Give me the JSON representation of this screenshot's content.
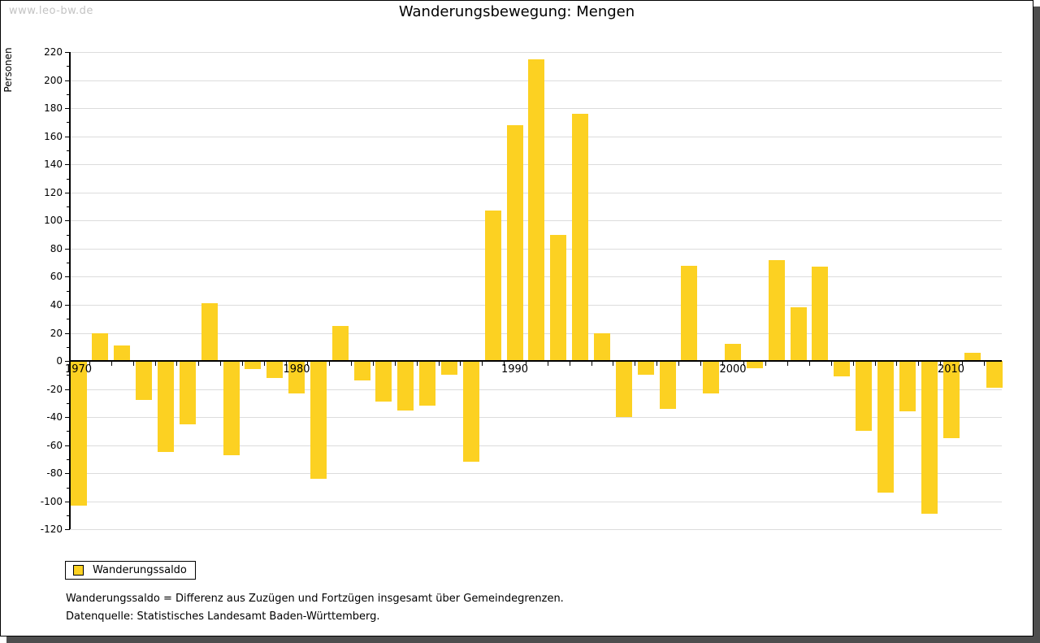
{
  "header": {
    "title": "Wanderungsbewegung: Mengen",
    "watermark": "www.leo-bw.de"
  },
  "legend": {
    "label": "Wanderungssaldo"
  },
  "footnotes": {
    "line1": "Wanderungssaldo = Differenz aus Zuzügen und Fortzügen insgesamt über Gemeindegrenzen.",
    "line2": "Datenquelle: Statistisches Landesamt Baden-Württemberg."
  },
  "chart_data": {
    "type": "bar",
    "title": "Wanderungsbewegung: Mengen",
    "xlabel": "",
    "ylabel": "Personen",
    "legend_entries": [
      "Wanderungssaldo"
    ],
    "legend_position": "bottom-left",
    "grid": true,
    "ylim": [
      -120,
      220
    ],
    "ytick_step": 20,
    "ytick_minor_step": 10,
    "xtick_labels_shown": [
      "1970",
      "1980",
      "1990",
      "2000",
      "2010"
    ],
    "bar_color": "#FCD122",
    "grid_color": "#DCDCDC",
    "axis_color": "#000000",
    "categories": [
      "1970",
      "1971",
      "1972",
      "1973",
      "1974",
      "1975",
      "1976",
      "1977",
      "1978",
      "1979",
      "1980",
      "1981",
      "1982",
      "1983",
      "1984",
      "1985",
      "1986",
      "1987",
      "1988",
      "1989",
      "1990",
      "1991",
      "1992",
      "1993",
      "1994",
      "1995",
      "1996",
      "1997",
      "1998",
      "1999",
      "2000",
      "2001",
      "2002",
      "2003",
      "2004",
      "2005",
      "2006",
      "2007",
      "2008",
      "2009",
      "2010",
      "2011",
      "2012"
    ],
    "values": [
      -103,
      20,
      11,
      -28,
      -65,
      -45,
      41,
      -67,
      -6,
      -12,
      -23,
      -84,
      25,
      -14,
      -29,
      -35,
      -32,
      -10,
      -72,
      107,
      168,
      215,
      90,
      176,
      20,
      -40,
      -10,
      -34,
      68,
      -23,
      12,
      -5,
      72,
      38,
      67,
      -11,
      -50,
      -94,
      -36,
      -109,
      -55,
      6,
      -19
    ]
  }
}
